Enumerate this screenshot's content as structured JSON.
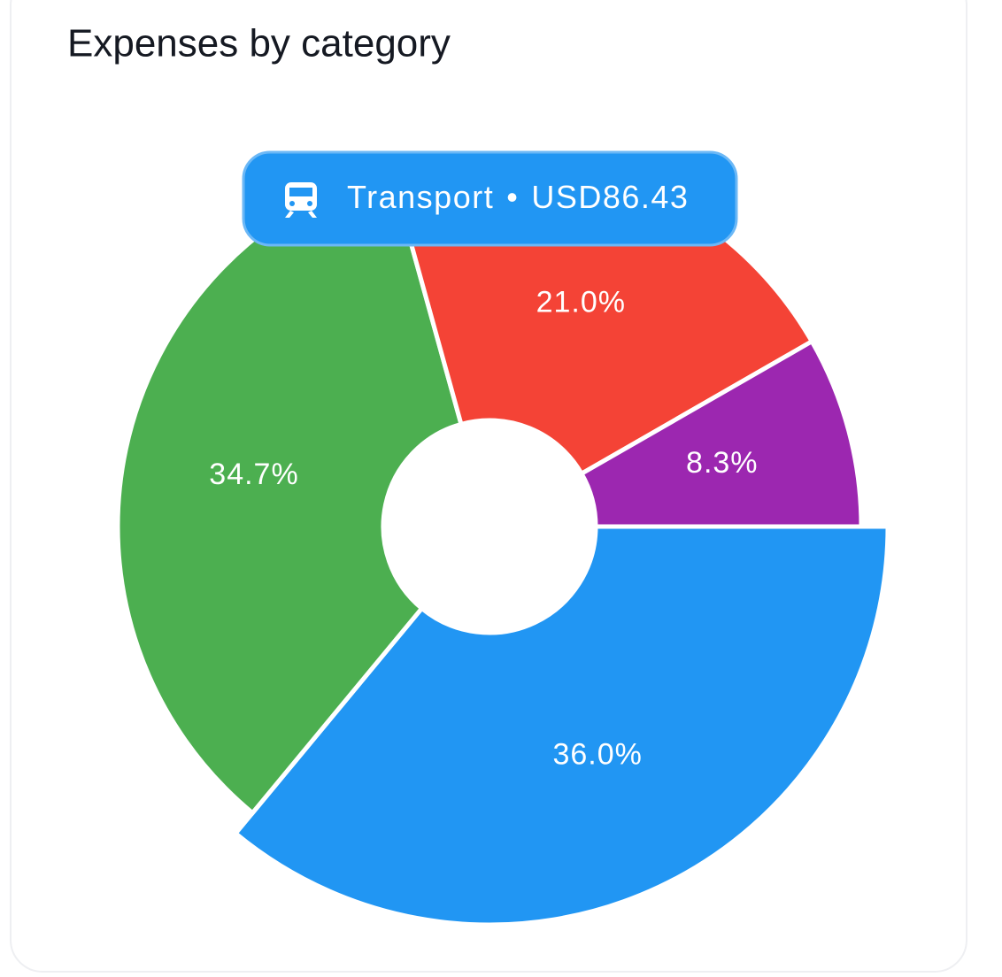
{
  "chart_data": {
    "type": "pie",
    "title": "Expenses by category",
    "categories": [
      "Transport",
      null,
      null,
      null
    ],
    "values": [
      36.0,
      34.7,
      21.0,
      8.3
    ],
    "value_labels": [
      "36.0%",
      "34.7%",
      "21.0%",
      "8.3%"
    ],
    "colors": [
      "#2196f3",
      "#4caf50",
      "#f44336",
      "#9c27b0"
    ],
    "highlighted": 0,
    "tooltip": {
      "separator": "•",
      "amount": "USD86.43"
    }
  }
}
